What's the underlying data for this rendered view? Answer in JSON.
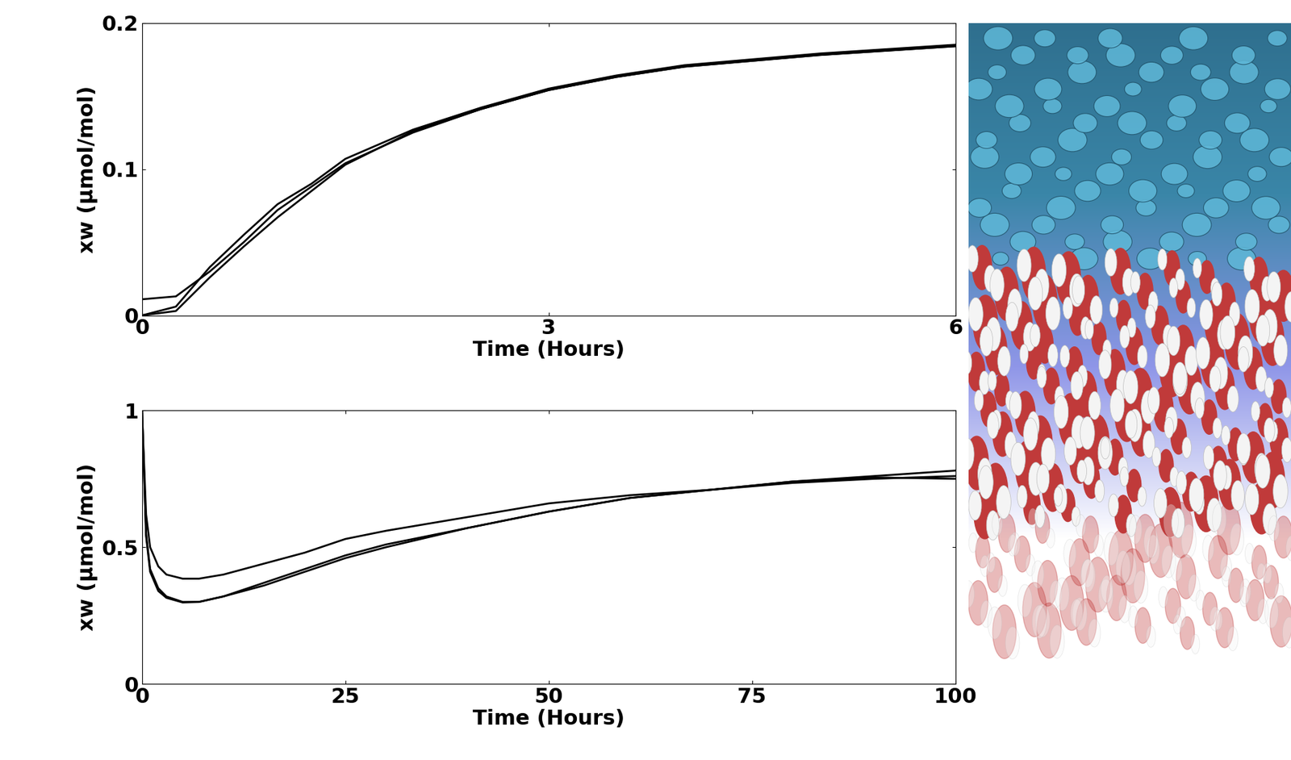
{
  "chart_data": [
    {
      "type": "line",
      "x_label": "Time (Hours)",
      "y_label": "xw (μmol/mol)",
      "x": [
        0,
        0.25,
        0.5,
        0.75,
        1,
        1.25,
        1.5,
        2,
        2.5,
        3,
        3.5,
        4,
        4.5,
        5,
        5.5,
        6
      ],
      "series": [
        {
          "color": "#000000",
          "values": [
            0.011,
            0.013,
            0.03,
            0.05,
            0.072,
            0.088,
            0.104,
            0.125,
            0.141,
            0.154,
            0.163,
            0.17,
            0.174,
            0.178,
            0.181,
            0.184
          ]
        },
        {
          "color": "#000000",
          "values": [
            0,
            0.006,
            0.033,
            0.055,
            0.076,
            0.09,
            0.107,
            0.127,
            0.142,
            0.155,
            0.164,
            0.171,
            0.175,
            0.179,
            0.182,
            0.185
          ]
        },
        {
          "color": "#000000",
          "values": [
            0,
            0.003,
            0.026,
            0.047,
            0.067,
            0.085,
            0.103,
            0.126,
            0.141,
            0.154,
            0.163,
            0.17,
            0.174,
            0.178,
            0.181,
            0.184
          ]
        }
      ],
      "xlim": [
        0,
        6
      ],
      "xticks": [
        0,
        3,
        6
      ],
      "ylim": [
        0,
        0.2
      ],
      "yticks": [
        0,
        0.1,
        0.2
      ]
    },
    {
      "type": "line",
      "x_label": "Time (Hours)",
      "y_label": "xw (μmol/mol)",
      "x": [
        0,
        0.5,
        1,
        2,
        3,
        5,
        7,
        10,
        15,
        20,
        25,
        30,
        40,
        50,
        60,
        70,
        80,
        90,
        100
      ],
      "series": [
        {
          "color": "#000000",
          "values": [
            1.0,
            0.62,
            0.5,
            0.43,
            0.4,
            0.385,
            0.385,
            0.4,
            0.44,
            0.48,
            0.53,
            0.56,
            0.61,
            0.66,
            0.69,
            0.71,
            0.735,
            0.75,
            0.76
          ]
        },
        {
          "color": "#000000",
          "values": [
            1.0,
            0.55,
            0.42,
            0.35,
            0.32,
            0.3,
            0.3,
            0.32,
            0.37,
            0.42,
            0.47,
            0.51,
            0.57,
            0.63,
            0.68,
            0.71,
            0.74,
            0.76,
            0.78
          ]
        },
        {
          "color": "#000000",
          "values": [
            1.0,
            0.54,
            0.41,
            0.34,
            0.315,
            0.298,
            0.3,
            0.32,
            0.36,
            0.41,
            0.46,
            0.5,
            0.57,
            0.63,
            0.68,
            0.71,
            0.74,
            0.755,
            0.75
          ]
        }
      ],
      "xlim": [
        0,
        100
      ],
      "xticks": [
        0,
        25,
        50,
        75,
        100
      ],
      "ylim": [
        0,
        1
      ],
      "yticks": [
        0,
        0.5,
        1
      ]
    }
  ]
}
